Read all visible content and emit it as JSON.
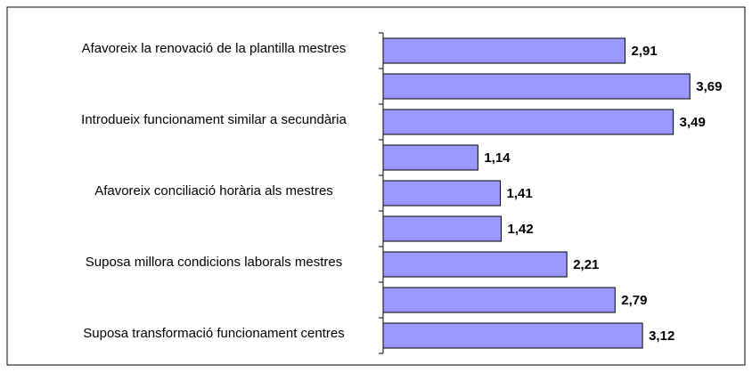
{
  "chart_data": {
    "type": "bar",
    "orientation": "horizontal",
    "categories": [
      "Afavoreix la renovació de la plantilla mestres",
      null,
      "Introdueix funcionament similar a secundària",
      null,
      "Afavoreix conciliació horària als mestres",
      null,
      "Suposa millora condicions laborals mestres",
      null,
      "Suposa transformació funcionament centres"
    ],
    "values": [
      2.91,
      3.69,
      3.49,
      1.14,
      1.41,
      1.42,
      2.21,
      2.79,
      3.12
    ],
    "value_labels": [
      "2,91",
      "3,69",
      "3,49",
      "1,14",
      "1,41",
      "1,42",
      "2,21",
      "2,79",
      "3,12"
    ],
    "color": "#9999ff"
  }
}
